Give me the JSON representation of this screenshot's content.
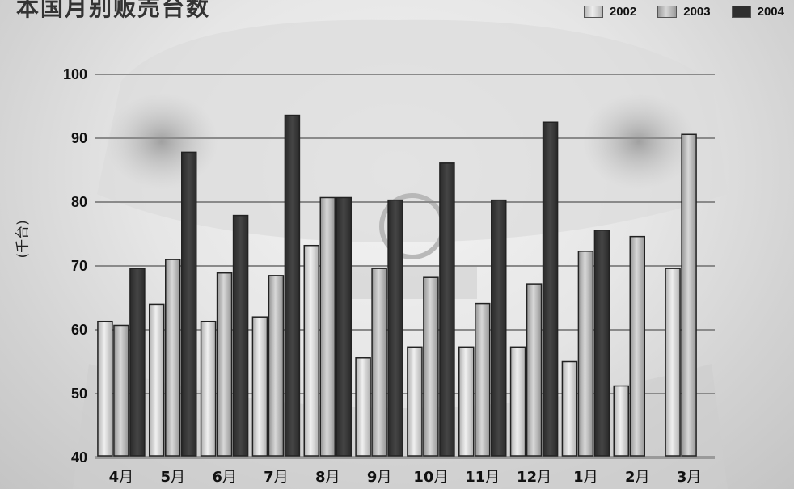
{
  "colors": {
    "2002": "#d8d8d8",
    "2003": "#bdbdbd",
    "2004": "#383838",
    "gridline": "#8a8a8a",
    "baseline": "#9a9a9a"
  },
  "chart_data": {
    "type": "bar",
    "title": "本国月别贩売台数",
    "ylabel": "(千台)",
    "xlabel": "",
    "ylim": [
      40,
      100
    ],
    "yticks": [
      40,
      50,
      60,
      70,
      80,
      90,
      100
    ],
    "grid": true,
    "legend_position": "top-right",
    "categories": [
      "4月",
      "5月",
      "6月",
      "7月",
      "8月",
      "9月",
      "10月",
      "11月",
      "12月",
      "1月",
      "2月",
      "3月"
    ],
    "series": [
      {
        "name": "2002",
        "values": [
          61.3,
          64.0,
          61.3,
          62.0,
          73.2,
          55.6,
          57.3,
          57.3,
          57.3,
          55.0,
          51.2,
          69.6
        ]
      },
      {
        "name": "2003",
        "values": [
          60.7,
          71.0,
          68.9,
          68.5,
          80.7,
          69.6,
          68.2,
          64.1,
          67.2,
          72.3,
          74.6,
          90.6
        ]
      },
      {
        "name": "2004",
        "values": [
          69.6,
          87.8,
          77.9,
          93.6,
          80.7,
          80.3,
          86.1,
          80.3,
          92.5,
          75.6,
          null,
          null
        ]
      }
    ]
  }
}
